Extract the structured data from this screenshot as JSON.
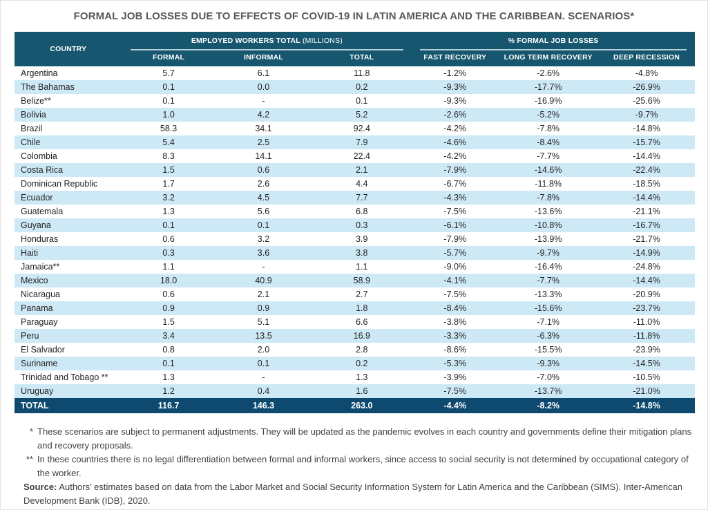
{
  "title": "FORMAL JOB LOSSES DUE TO EFFECTS OF COVID-19 IN LATIN AMERICA AND THE CARIBBEAN. SCENARIOS*",
  "table": {
    "country_header": "COUNTRY",
    "group1_bold": "EMPLOYED WORKERS TOTAL",
    "group1_light": " (MILLIONS)",
    "group2_bold": "% FORMAL JOB LOSSES",
    "subheaders": [
      "FORMAL",
      "INFORMAL",
      "TOTAL",
      "FAST RECOVERY",
      "LONG TERM RECOVERY",
      "DEEP RECESSION"
    ],
    "rows": [
      [
        "Argentina",
        "5.7",
        "6.1",
        "11.8",
        "-1.2%",
        "-2.6%",
        "-4.8%"
      ],
      [
        "The Bahamas",
        "0.1",
        "0.0",
        "0.2",
        "-9.3%",
        "-17.7%",
        "-26.9%"
      ],
      [
        "Belize**",
        "0.1",
        "-",
        "0.1",
        "-9.3%",
        "-16.9%",
        "-25.6%"
      ],
      [
        "Bolivia",
        "1.0",
        "4.2",
        "5.2",
        "-2.6%",
        "-5.2%",
        "-9.7%"
      ],
      [
        "Brazil",
        "58.3",
        "34.1",
        "92.4",
        "-4.2%",
        "-7.8%",
        "-14.8%"
      ],
      [
        "Chile",
        "5.4",
        "2.5",
        "7.9",
        "-4.6%",
        "-8.4%",
        "-15.7%"
      ],
      [
        "Colombia",
        "8.3",
        "14.1",
        "22.4",
        "-4.2%",
        "-7.7%",
        "-14.4%"
      ],
      [
        "Costa Rica",
        "1.5",
        "0.6",
        "2.1",
        "-7.9%",
        "-14.6%",
        "-22.4%"
      ],
      [
        "Dominican Republic",
        "1.7",
        "2.6",
        "4.4",
        "-6.7%",
        "-11.8%",
        "-18.5%"
      ],
      [
        "Ecuador",
        "3.2",
        "4.5",
        "7.7",
        "-4.3%",
        "-7.8%",
        "-14.4%"
      ],
      [
        "Guatemala",
        "1.3",
        "5.6",
        "6.8",
        "-7.5%",
        "-13.6%",
        "-21.1%"
      ],
      [
        "Guyana",
        "0.1",
        "0.1",
        "0.3",
        "-6.1%",
        "-10.8%",
        "-16.7%"
      ],
      [
        "Honduras",
        "0.6",
        "3.2",
        "3.9",
        "-7.9%",
        "-13.9%",
        "-21.7%"
      ],
      [
        "Haiti",
        "0.3",
        "3.6",
        "3.8",
        "-5.7%",
        "-9.7%",
        "-14.9%"
      ],
      [
        "Jamaica**",
        "1.1",
        "-",
        "1.1",
        "-9.0%",
        "-16.4%",
        "-24.8%"
      ],
      [
        "Mexico",
        "18.0",
        "40.9",
        "58.9",
        "-4.1%",
        "-7.7%",
        "-14.4%"
      ],
      [
        "Nicaragua",
        "0.6",
        "2.1",
        "2.7",
        "-7.5%",
        "-13.3%",
        "-20.9%"
      ],
      [
        "Panama",
        "0.9",
        "0.9",
        "1.8",
        "-8.4%",
        "-15.6%",
        "-23.7%"
      ],
      [
        "Paraguay",
        "1.5",
        "5.1",
        "6.6",
        "-3.8%",
        "-7.1%",
        "-11.0%"
      ],
      [
        "Peru",
        "3.4",
        "13.5",
        "16.9",
        "-3.3%",
        "-6.3%",
        "-11.8%"
      ],
      [
        "El Salvador",
        "0.8",
        "2.0",
        "2.8",
        "-8.6%",
        "-15.5%",
        "-23.9%"
      ],
      [
        "Suriname",
        "0.1",
        "0.1",
        "0.2",
        "-5.3%",
        "-9.3%",
        "-14.5%"
      ],
      [
        "Trinidad and Tobago **",
        "1.3",
        "-",
        "1.3",
        "-3.9%",
        "-7.0%",
        "-10.5%"
      ],
      [
        "Uruguay",
        "1.2",
        "0.4",
        "1.6",
        "-7.5%",
        "-13.7%",
        "-21.0%"
      ]
    ],
    "total_row": [
      "TOTAL",
      "116.7",
      "146.3",
      "263.0",
      "-4.4%",
      "-8.2%",
      "-14.8%"
    ]
  },
  "footnotes": [
    {
      "marker": "*",
      "text": "These scenarios are subject to permanent adjustments. They will be updated as the pandemic evolves in each country and governments define their mitigation plans and recovery proposals."
    },
    {
      "marker": "**",
      "text": "In these countries there is no legal differentiation between formal and informal workers, since access to social security is not determined by occupational category of the worker."
    }
  ],
  "source": {
    "label": "Source:",
    "text": " Authors’ estimates based on data from the Labor Market and Social Security Information System for Latin America and the Caribbean (SIMS). Inter-American Development Bank (IDB), 2020."
  },
  "colors": {
    "header_bg": "#16566e",
    "total_row_bg": "#0e4a70",
    "row_stripe": "#cde9f6",
    "title_text": "#58595b",
    "body_text": "#231f20",
    "note_text": "#414042",
    "group_underline": "#b9cfda"
  }
}
